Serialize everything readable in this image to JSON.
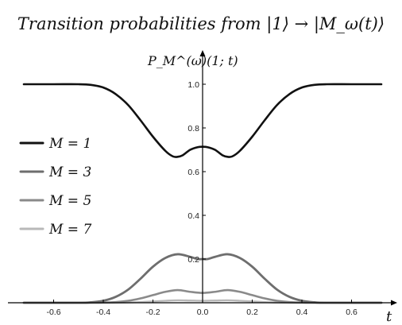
{
  "chart_data": {
    "type": "line",
    "title": "Transition probabilities from |1⟩ → |M_ω(t)⟩",
    "ylabel": "P_M^(ω)(1; t)",
    "xlabel": "t",
    "xlim": [
      -0.72,
      0.72
    ],
    "ylim": [
      0,
      1.07
    ],
    "x_ticks": [
      "-0.6",
      "-0.4",
      "-0.2",
      "0.0",
      "0.2",
      "0.4",
      "0.6"
    ],
    "y_ticks": [
      "0.2",
      "0.4",
      "0.6",
      "0.8",
      "1.0"
    ],
    "legend_position": "left",
    "series": [
      {
        "name": "M = 1",
        "color": "#111111",
        "x": [
          -0.72,
          -0.6,
          -0.5,
          -0.45,
          -0.4,
          -0.35,
          -0.3,
          -0.25,
          -0.2,
          -0.15,
          -0.12,
          -0.1,
          -0.08,
          -0.05,
          -0.02,
          0.0,
          0.02,
          0.05,
          0.08,
          0.1,
          0.12,
          0.15,
          0.2,
          0.25,
          0.3,
          0.35,
          0.4,
          0.45,
          0.5,
          0.6,
          0.72
        ],
        "y": [
          1.0,
          1.0,
          1.0,
          0.997,
          0.985,
          0.955,
          0.905,
          0.835,
          0.76,
          0.695,
          0.67,
          0.668,
          0.675,
          0.7,
          0.712,
          0.714,
          0.712,
          0.7,
          0.675,
          0.668,
          0.67,
          0.695,
          0.76,
          0.835,
          0.905,
          0.955,
          0.985,
          0.997,
          1.0,
          1.0,
          1.0
        ]
      },
      {
        "name": "M = 3",
        "color": "#6e6e6e",
        "x": [
          -0.72,
          -0.5,
          -0.45,
          -0.4,
          -0.35,
          -0.3,
          -0.25,
          -0.2,
          -0.15,
          -0.1,
          -0.05,
          -0.02,
          0.0,
          0.02,
          0.05,
          0.1,
          0.15,
          0.2,
          0.25,
          0.3,
          0.35,
          0.4,
          0.45,
          0.5,
          0.72
        ],
        "y": [
          0.0,
          0.0,
          0.002,
          0.009,
          0.027,
          0.06,
          0.11,
          0.165,
          0.205,
          0.222,
          0.21,
          0.2,
          0.2,
          0.2,
          0.21,
          0.222,
          0.205,
          0.165,
          0.11,
          0.06,
          0.027,
          0.009,
          0.002,
          0.0,
          0.0
        ]
      },
      {
        "name": "M = 5",
        "color": "#8a8a8a",
        "x": [
          -0.72,
          -0.45,
          -0.4,
          -0.35,
          -0.3,
          -0.25,
          -0.2,
          -0.15,
          -0.1,
          -0.05,
          0.0,
          0.05,
          0.1,
          0.15,
          0.2,
          0.25,
          0.3,
          0.35,
          0.4,
          0.45,
          0.72
        ],
        "y": [
          0.0,
          0.0,
          0.001,
          0.003,
          0.009,
          0.02,
          0.035,
          0.05,
          0.058,
          0.05,
          0.045,
          0.05,
          0.058,
          0.05,
          0.035,
          0.02,
          0.009,
          0.003,
          0.001,
          0.0,
          0.0
        ]
      },
      {
        "name": "M = 7",
        "color": "#b8b8b8",
        "x": [
          -0.72,
          -0.4,
          -0.35,
          -0.3,
          -0.25,
          -0.2,
          -0.15,
          -0.1,
          -0.05,
          0.0,
          0.05,
          0.1,
          0.15,
          0.2,
          0.25,
          0.3,
          0.35,
          0.4,
          0.72
        ],
        "y": [
          0.0,
          0.0,
          0.0,
          0.001,
          0.003,
          0.006,
          0.009,
          0.011,
          0.01,
          0.009,
          0.01,
          0.011,
          0.009,
          0.006,
          0.003,
          0.001,
          0.0,
          0.0,
          0.0
        ]
      }
    ]
  }
}
